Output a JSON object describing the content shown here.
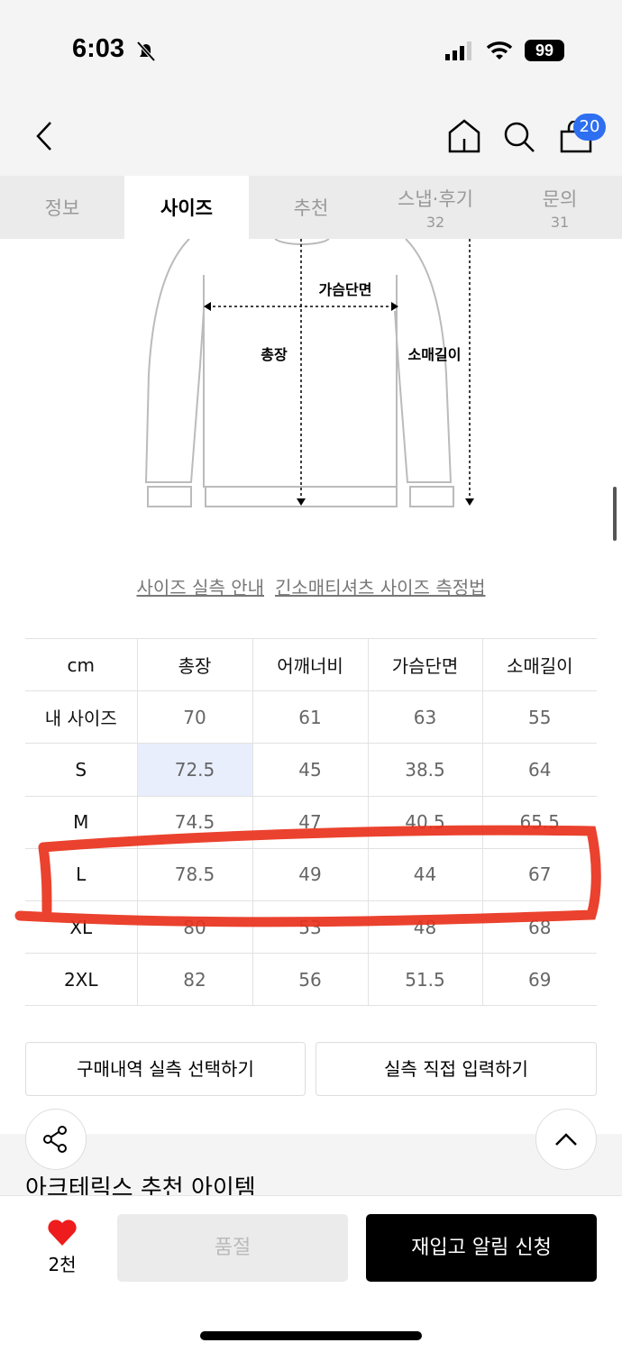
{
  "status": {
    "time": "6:03",
    "battery": "99"
  },
  "nav": {
    "cart_count": "20"
  },
  "tabs": [
    {
      "label": "정보"
    },
    {
      "label": "사이즈"
    },
    {
      "label": "추천"
    },
    {
      "label": "스냅·후기",
      "count": "32"
    },
    {
      "label": "문의",
      "count": "31"
    }
  ],
  "diagram": {
    "chest": "가슴단면",
    "length": "총장",
    "sleeve": "소매길이"
  },
  "links": {
    "guide": "사이즈 실측 안내",
    "method": "긴소매티셔츠 사이즈 측정법"
  },
  "table": {
    "headers": [
      "cm",
      "총장",
      "어깨너비",
      "가슴단면",
      "소매길이"
    ],
    "rows": [
      [
        "내 사이즈",
        "70",
        "61",
        "63",
        "55"
      ],
      [
        "S",
        "72.5",
        "45",
        "38.5",
        "64"
      ],
      [
        "M",
        "74.5",
        "47",
        "40.5",
        "65.5"
      ],
      [
        "L",
        "78.5",
        "49",
        "44",
        "67"
      ],
      [
        "XL",
        "80",
        "53",
        "48",
        "68"
      ],
      [
        "2XL",
        "82",
        "56",
        "51.5",
        "69"
      ]
    ]
  },
  "buttons": {
    "history": "구매내역 실측 선택하기",
    "manual": "실측 직접 입력하기"
  },
  "recommend_title": "아크테릭스 추천 아이템",
  "bottom": {
    "likes": "2천",
    "soldout": "품절",
    "restock": "재입고 알림 신청"
  },
  "colors": {
    "accent": "#2d6ff0",
    "annotation": "#e8321c",
    "heart": "#ee1c1c"
  }
}
